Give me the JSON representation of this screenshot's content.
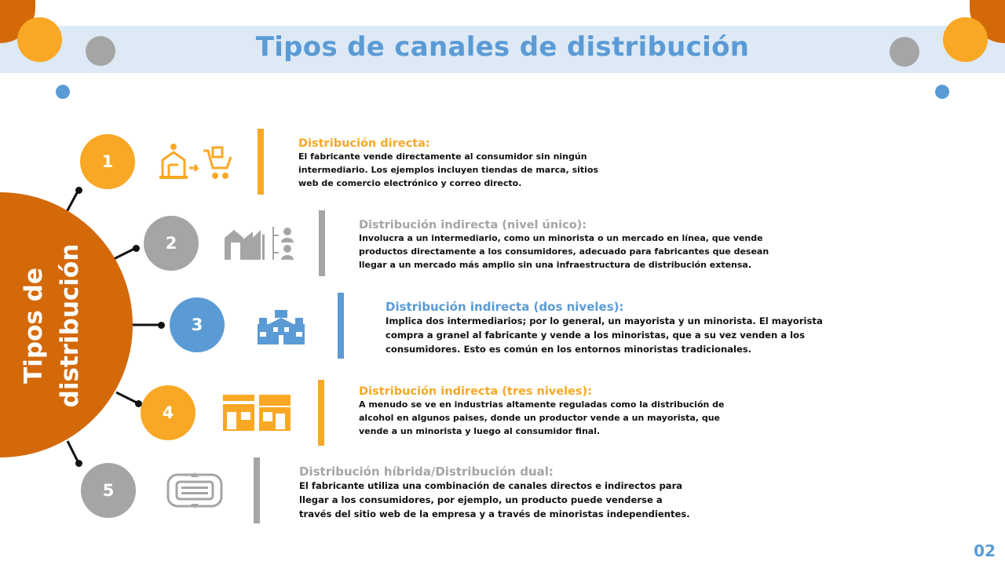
{
  "header": {
    "title": "Tipos de canales de distribución"
  },
  "hub": {
    "label_line1": "Tipos de",
    "label_line2": "distribución"
  },
  "colors": {
    "orange": "#f9a825",
    "dark_orange": "#d4690a",
    "gray": "#a5a5a5",
    "blue": "#5b9bd5",
    "band": "#dde9f5"
  },
  "items": [
    {
      "number": "1",
      "icon": "factory-to-cart-icon",
      "title": "Distribución directa:",
      "body": "El fabricante vende directamente al consumidor sin ningún\nintermediario. Los ejemplos incluyen tiendas de marca, sitios\nweb de comercio electrónico y correo directo."
    },
    {
      "number": "2",
      "icon": "factory-to-people-icon",
      "title": "Distribución indirecta (nivel único):",
      "body": "Involucra a un intermediario, como un minorista o un mercado en línea, que vende\nproductos directamente a los consumidores, adecuado para fabricantes que desean\nllegar a un mercado más amplio sin una infraestructura de distribución extensa."
    },
    {
      "number": "3",
      "icon": "buildings-icon",
      "title": "Distribución indirecta (dos niveles):",
      "body": "Implica dos intermediarios; por lo general, un mayorista y un minorista. El mayorista\ncompra a granel al fabricante y vende a los minoristas, que a su vez venden a los\nconsumidores. Esto es común en los entornos minoristas tradicionales."
    },
    {
      "number": "4",
      "icon": "storefronts-icon",
      "title": "Distribución indirecta (tres niveles):",
      "body": "A menudo se ve en industrias altamente reguladas como la distribución de\nalcohol en algunos paises, donde un productor vende a un mayorista, que\nvende a un minorista y luego al consumidor final."
    },
    {
      "number": "5",
      "icon": "hybrid-channels-icon",
      "title": "Distribución híbrida/Distribución dual:",
      "body": "El fabricante utiliza una combinación de canales directos e indirectos para\nllegar a los consumidores, por ejemplo, un producto puede venderse a\ntravés del sitio web de la empresa y a través de minoristas independientes."
    }
  ],
  "page_number": "02"
}
